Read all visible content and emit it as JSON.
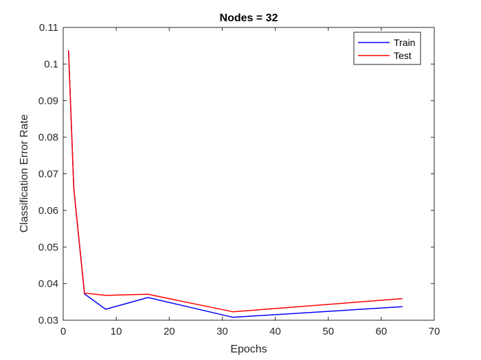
{
  "chart_data": {
    "type": "line",
    "title": "Nodes = 32",
    "xlabel": "Epochs",
    "ylabel": "Classification Error Rate",
    "xlim": [
      0,
      70
    ],
    "ylim": [
      0.03,
      0.11
    ],
    "xticks": [
      0,
      10,
      20,
      30,
      40,
      50,
      60,
      70
    ],
    "yticks": [
      0.03,
      0.04,
      0.05,
      0.06,
      0.07,
      0.08,
      0.09,
      0.1,
      0.11
    ],
    "xtick_labels": [
      "0",
      "10",
      "20",
      "30",
      "40",
      "50",
      "60",
      "70"
    ],
    "ytick_labels": [
      "0.03",
      "0.04",
      "0.05",
      "0.06",
      "0.07",
      "0.08",
      "0.09",
      "0.1",
      "0.11"
    ],
    "grid": false,
    "legend_position": "top-right",
    "series": [
      {
        "name": "Train",
        "color": "#0000ff",
        "x": [
          1,
          2,
          4,
          8,
          16,
          32,
          64
        ],
        "y": [
          0.1038,
          0.066,
          0.0372,
          0.033,
          0.0362,
          0.0308,
          0.0337
        ]
      },
      {
        "name": "Test",
        "color": "#ff0000",
        "x": [
          1,
          2,
          4,
          8,
          16,
          32,
          64
        ],
        "y": [
          0.1038,
          0.066,
          0.0374,
          0.0368,
          0.0371,
          0.0323,
          0.0359
        ]
      }
    ]
  }
}
